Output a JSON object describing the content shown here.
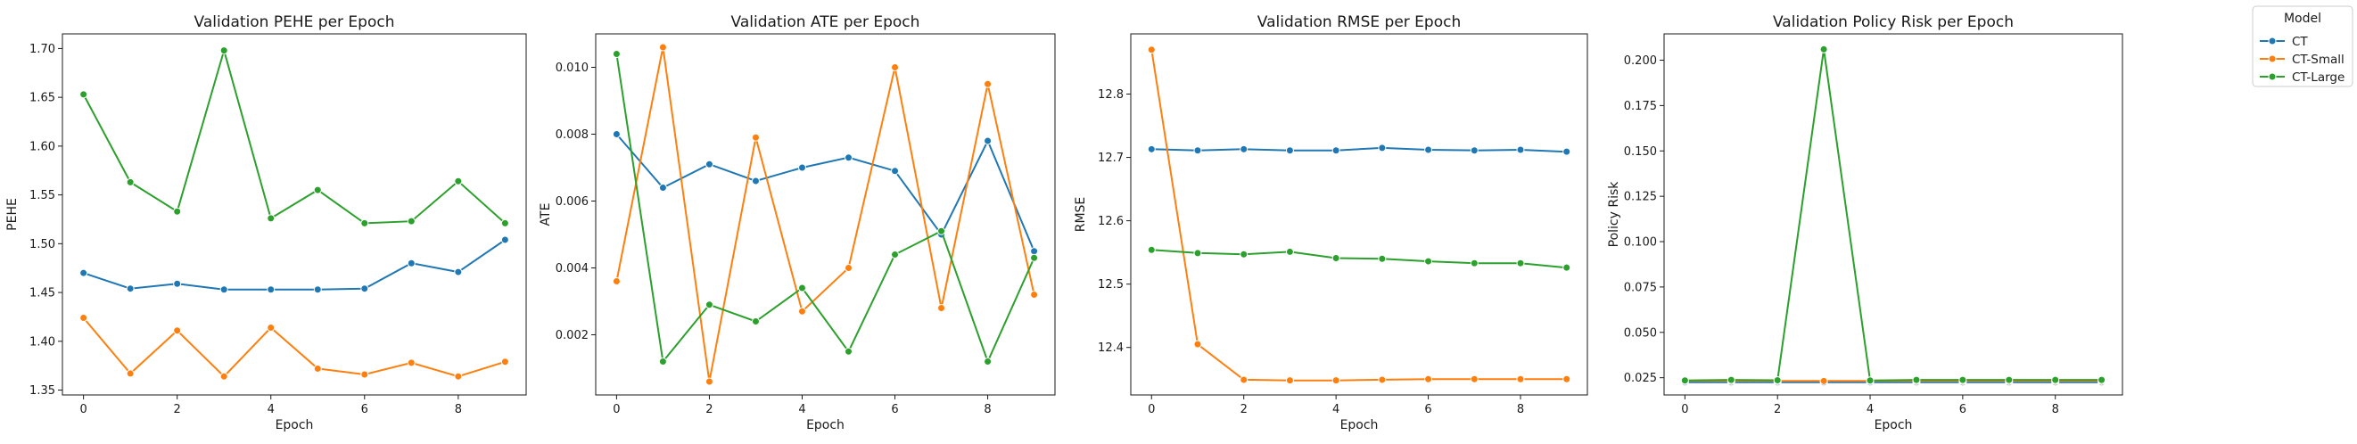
{
  "legend": {
    "title": "Model",
    "entries": [
      {
        "name": "CT",
        "color": "#1f77b4"
      },
      {
        "name": "CT-Small",
        "color": "#ff7f0e"
      },
      {
        "name": "CT-Large",
        "color": "#2ca02c"
      }
    ]
  },
  "chart_data": [
    {
      "type": "line",
      "title": "Validation PEHE per Epoch",
      "xlabel": "Epoch",
      "ylabel": "PEHE",
      "x": [
        0,
        1,
        2,
        3,
        4,
        5,
        6,
        7,
        8,
        9
      ],
      "xlim": [
        -0.45,
        9.45
      ],
      "ylim": [
        1.345,
        1.715
      ],
      "xticks": [
        0,
        2,
        4,
        6,
        8
      ],
      "yticks": [
        1.35,
        1.4,
        1.45,
        1.5,
        1.55,
        1.6,
        1.65,
        1.7
      ],
      "ytick_labels": [
        "1.35",
        "1.40",
        "1.45",
        "1.50",
        "1.55",
        "1.60",
        "1.65",
        "1.70"
      ],
      "series": [
        {
          "name": "CT",
          "values": [
            1.47,
            1.454,
            1.459,
            1.453,
            1.453,
            1.453,
            1.454,
            1.48,
            1.471,
            1.504
          ]
        },
        {
          "name": "CT-Small",
          "values": [
            1.424,
            1.367,
            1.411,
            1.364,
            1.414,
            1.372,
            1.366,
            1.378,
            1.364,
            1.379
          ]
        },
        {
          "name": "CT-Large",
          "values": [
            1.653,
            1.563,
            1.533,
            1.698,
            1.526,
            1.555,
            1.521,
            1.523,
            1.564,
            1.521
          ]
        }
      ]
    },
    {
      "type": "line",
      "title": "Validation ATE per Epoch",
      "xlabel": "Epoch",
      "ylabel": "ATE",
      "x": [
        0,
        1,
        2,
        3,
        4,
        5,
        6,
        7,
        8,
        9
      ],
      "xlim": [
        -0.45,
        9.45
      ],
      "ylim": [
        0.0002,
        0.011
      ],
      "xticks": [
        0,
        2,
        4,
        6,
        8
      ],
      "yticks": [
        0.002,
        0.004,
        0.006,
        0.008,
        0.01
      ],
      "ytick_labels": [
        "0.002",
        "0.004",
        "0.006",
        "0.008",
        "0.010"
      ],
      "series": [
        {
          "name": "CT",
          "values": [
            0.008,
            0.0064,
            0.0071,
            0.0066,
            0.007,
            0.0073,
            0.0069,
            0.005,
            0.0078,
            0.0045
          ]
        },
        {
          "name": "CT-Small",
          "values": [
            0.0036,
            0.0106,
            0.0006,
            0.0079,
            0.0027,
            0.004,
            0.01,
            0.0028,
            0.0095,
            0.0032
          ]
        },
        {
          "name": "CT-Large",
          "values": [
            0.0104,
            0.0012,
            0.0029,
            0.0024,
            0.0034,
            0.0015,
            0.0044,
            0.0051,
            0.0012,
            0.0043
          ]
        }
      ]
    },
    {
      "type": "line",
      "title": "Validation RMSE per Epoch",
      "xlabel": "Epoch",
      "ylabel": "RMSE",
      "x": [
        0,
        1,
        2,
        3,
        4,
        5,
        6,
        7,
        8,
        9
      ],
      "xlim": [
        -0.45,
        9.45
      ],
      "ylim": [
        12.325,
        12.895
      ],
      "xticks": [
        0,
        2,
        4,
        6,
        8
      ],
      "yticks": [
        12.4,
        12.5,
        12.6,
        12.7,
        12.8
      ],
      "ytick_labels": [
        "12.4",
        "12.5",
        "12.6",
        "12.7",
        "12.8"
      ],
      "series": [
        {
          "name": "CT",
          "values": [
            12.713,
            12.711,
            12.713,
            12.711,
            12.711,
            12.715,
            12.712,
            12.711,
            12.712,
            12.709
          ]
        },
        {
          "name": "CT-Small",
          "values": [
            12.87,
            12.405,
            12.349,
            12.348,
            12.348,
            12.349,
            12.35,
            12.35,
            12.35,
            12.35
          ]
        },
        {
          "name": "CT-Large",
          "values": [
            12.554,
            12.549,
            12.547,
            12.551,
            12.541,
            12.54,
            12.536,
            12.533,
            12.533,
            12.526
          ]
        }
      ]
    },
    {
      "type": "line",
      "title": "Validation Policy Risk per Epoch",
      "xlabel": "Epoch",
      "ylabel": "Policy Risk",
      "x": [
        0,
        1,
        2,
        3,
        4,
        5,
        6,
        7,
        8,
        9
      ],
      "xlim": [
        -0.45,
        9.45
      ],
      "ylim": [
        0.0155,
        0.2145
      ],
      "xticks": [
        0,
        2,
        4,
        6,
        8
      ],
      "yticks": [
        0.025,
        0.05,
        0.075,
        0.1,
        0.125,
        0.15,
        0.175,
        0.2
      ],
      "ytick_labels": [
        "0.025",
        "0.050",
        "0.075",
        "0.100",
        "0.125",
        "0.150",
        "0.175",
        "0.200"
      ],
      "series": [
        {
          "name": "CT",
          "values": [
            0.0225,
            0.0225,
            0.0225,
            0.0225,
            0.0225,
            0.0225,
            0.0225,
            0.0225,
            0.0225,
            0.0225
          ]
        },
        {
          "name": "CT-Small",
          "values": [
            0.0232,
            0.0232,
            0.0232,
            0.0232,
            0.0232,
            0.0232,
            0.0232,
            0.0232,
            0.0232,
            0.0232
          ]
        },
        {
          "name": "CT-Large",
          "values": [
            0.0235,
            0.0238,
            0.0236,
            0.206,
            0.0235,
            0.0238,
            0.0238,
            0.0238,
            0.0238,
            0.0238
          ]
        }
      ]
    }
  ]
}
